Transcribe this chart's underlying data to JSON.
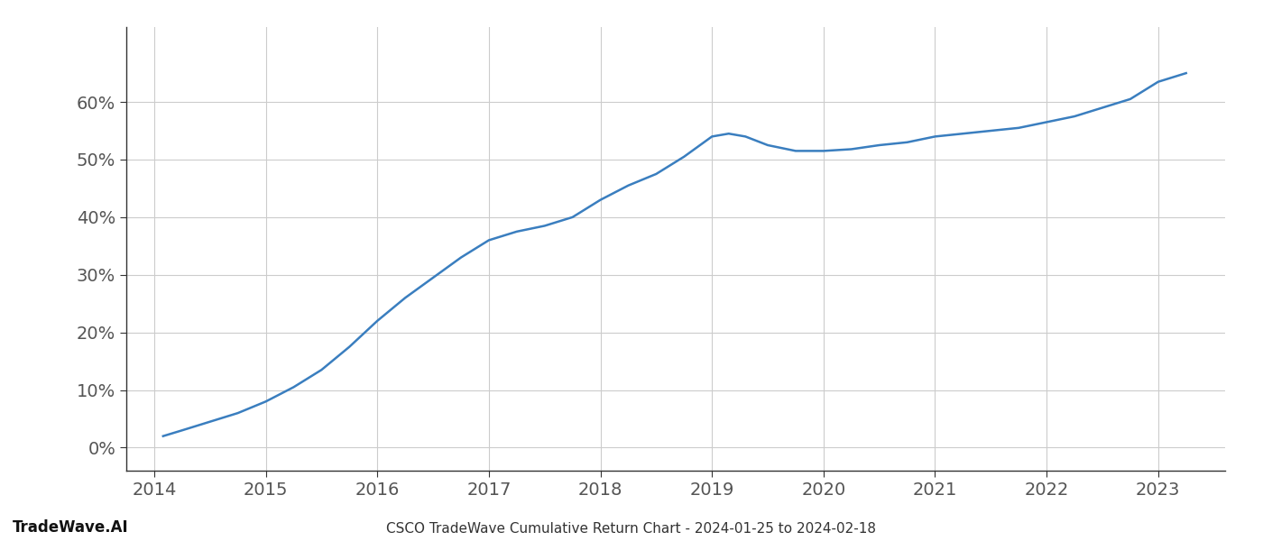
{
  "x_years": [
    2014.08,
    2014.25,
    2014.5,
    2014.75,
    2015.0,
    2015.25,
    2015.5,
    2015.75,
    2016.0,
    2016.25,
    2016.5,
    2016.75,
    2017.0,
    2017.25,
    2017.5,
    2017.75,
    2018.0,
    2018.25,
    2018.5,
    2018.75,
    2019.0,
    2019.15,
    2019.3,
    2019.5,
    2019.75,
    2020.0,
    2020.25,
    2020.5,
    2020.75,
    2021.0,
    2021.25,
    2021.5,
    2021.75,
    2022.0,
    2022.25,
    2022.5,
    2022.75,
    2023.0,
    2023.25
  ],
  "y_values": [
    2.0,
    3.0,
    4.5,
    6.0,
    8.0,
    10.5,
    13.5,
    17.5,
    22.0,
    26.0,
    29.5,
    33.0,
    36.0,
    37.5,
    38.5,
    40.0,
    43.0,
    45.5,
    47.5,
    50.5,
    54.0,
    54.5,
    54.0,
    52.5,
    51.5,
    51.5,
    51.8,
    52.5,
    53.0,
    54.0,
    54.5,
    55.0,
    55.5,
    56.5,
    57.5,
    59.0,
    60.5,
    63.5,
    65.0
  ],
  "line_color": "#3a7ebf",
  "line_width": 1.8,
  "title_bottom": "CSCO TradeWave Cumulative Return Chart - 2024-01-25 to 2024-02-18",
  "watermark": "TradeWave.AI",
  "x_tick_labels": [
    "2014",
    "2015",
    "2016",
    "2017",
    "2018",
    "2019",
    "2020",
    "2021",
    "2022",
    "2023"
  ],
  "x_tick_positions": [
    2014,
    2015,
    2016,
    2017,
    2018,
    2019,
    2020,
    2021,
    2022,
    2023
  ],
  "y_tick_labels": [
    "0%",
    "10%",
    "20%",
    "30%",
    "40%",
    "50%",
    "60%"
  ],
  "y_tick_positions": [
    0,
    10,
    20,
    30,
    40,
    50,
    60
  ],
  "xlim": [
    2013.75,
    2023.6
  ],
  "ylim": [
    -4,
    73
  ],
  "background_color": "#ffffff",
  "grid_color": "#cccccc",
  "spine_color": "#333333",
  "tick_color": "#555555",
  "label_fontsize": 14,
  "title_fontsize": 11,
  "watermark_fontsize": 12
}
